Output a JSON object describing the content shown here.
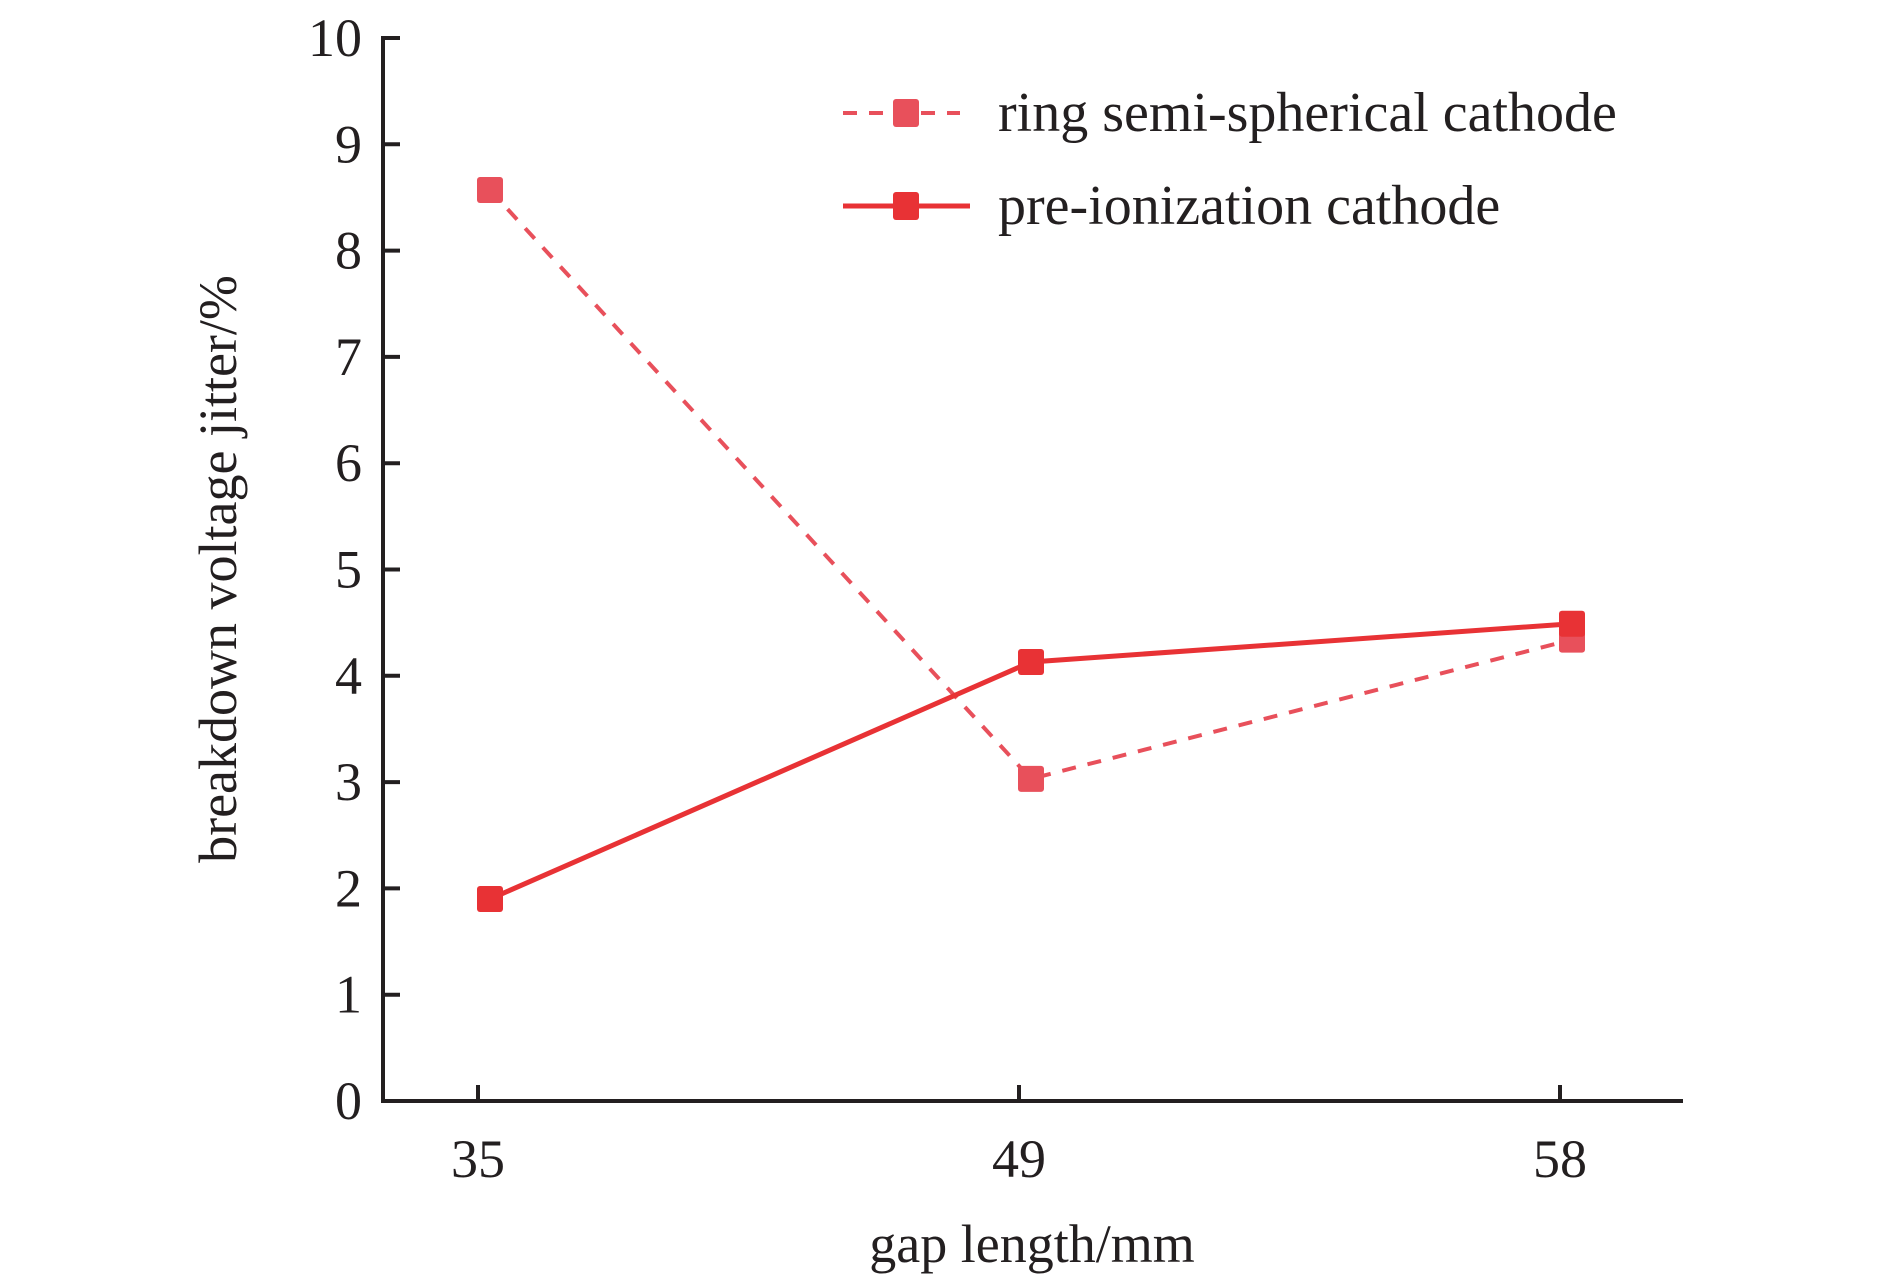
{
  "chart_data": {
    "type": "line",
    "title": "",
    "xlabel": "gap length/mm",
    "ylabel": "breakdown voltage jitter/%",
    "categories": [
      "35",
      "49",
      "58"
    ],
    "ylim": [
      0,
      10
    ],
    "yticks": [
      "0",
      "1",
      "2",
      "3",
      "4",
      "5",
      "6",
      "7",
      "8",
      "9",
      "10"
    ],
    "grid": false,
    "legend_position": "top-right",
    "series": [
      {
        "name": "ring semi-spherical cathode",
        "style": "dashed",
        "marker": "square",
        "color": "#e8505b",
        "values": [
          8.57,
          3.03,
          4.34
        ]
      },
      {
        "name": "pre-ionization cathode",
        "style": "solid",
        "marker": "square",
        "color": "#e83235",
        "values": [
          1.9,
          4.13,
          4.49
        ]
      }
    ]
  }
}
